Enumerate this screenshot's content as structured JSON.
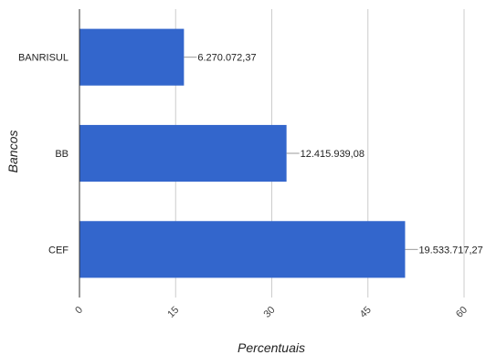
{
  "chart_data": {
    "type": "bar",
    "orientation": "horizontal",
    "categories": [
      "BANRISUL",
      "BB",
      "CEF"
    ],
    "values": [
      16.3,
      32.3,
      50.8
    ],
    "data_labels": [
      "6.270.072,37",
      "12.415.939,08",
      "19.533.717,27"
    ],
    "xlabel": "Percentuais",
    "ylabel": "Bancos",
    "xlim": [
      0,
      60
    ],
    "xticks": [
      0,
      15,
      30,
      45,
      60
    ],
    "grid": true,
    "legend": "none",
    "bar_color": "#3366cc"
  }
}
